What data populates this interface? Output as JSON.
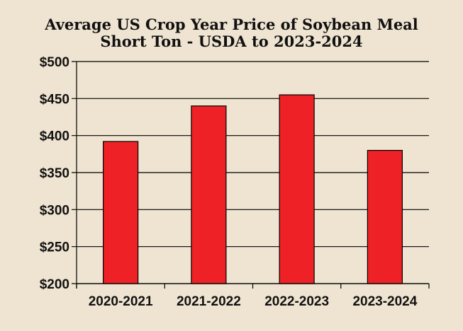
{
  "chart_data": {
    "type": "bar",
    "title": "Average US Crop Year Price of Soybean Meal",
    "subtitle": "Short Ton - USDA to 2023-2024",
    "categories": [
      "2020-2021",
      "2021-2022",
      "2022-2023",
      "2023-2024"
    ],
    "values": [
      392,
      440,
      455,
      380
    ],
    "ylim": [
      200,
      500
    ],
    "yticks": [
      200,
      250,
      300,
      350,
      400,
      450,
      500
    ],
    "ytick_labels": [
      "$200",
      "$250",
      "$300",
      "$350",
      "$400",
      "$450",
      "$500"
    ],
    "xlabel": "",
    "ylabel": "",
    "grid": true,
    "bar_color": "#ee2226",
    "background_color": "#efe4d1"
  }
}
